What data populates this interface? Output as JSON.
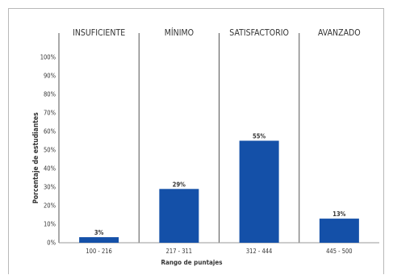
{
  "chart_data": {
    "type": "bar",
    "levels": [
      "INSUFICIENTE",
      "MÍNIMO",
      "SATISFACTORIO",
      "AVANZADO"
    ],
    "categories": [
      "100 - 216",
      "217 - 311",
      "312 - 444",
      "445 - 500"
    ],
    "values": [
      3,
      29,
      55,
      13
    ],
    "value_labels": [
      "3%",
      "29%",
      "55%",
      "13%"
    ],
    "xlabel": "Rango de puntajes",
    "ylabel": "Porcentaje de estudiantes",
    "ylim": [
      0,
      100
    ],
    "yticks": [
      "0%",
      "10%",
      "20%",
      "30%",
      "40%",
      "50%",
      "60%",
      "70%",
      "80%",
      "90%",
      "100%"
    ],
    "bar_color": "#1450a8",
    "grid": false,
    "legend": "none"
  }
}
